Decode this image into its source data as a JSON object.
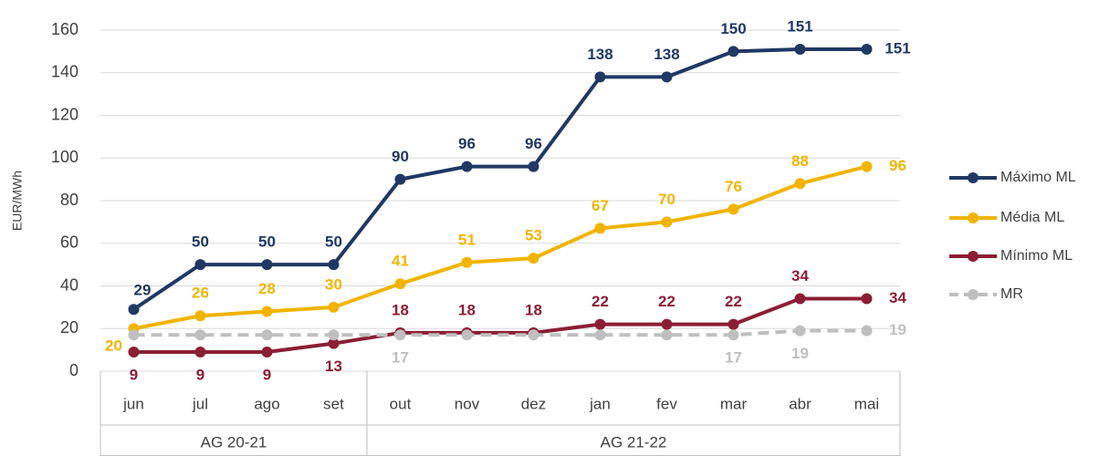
{
  "chart_data": {
    "type": "line",
    "y_label": "EUR/MWh",
    "categories": [
      "jun",
      "jul",
      "ago",
      "set",
      "out",
      "nov",
      "dez",
      "jan",
      "fev",
      "mar",
      "abr",
      "mai"
    ],
    "category_groups": [
      {
        "name": "AG 20-21",
        "categories": [
          "jun",
          "jul",
          "ago",
          "set"
        ]
      },
      {
        "name": "AG 21-22",
        "categories": [
          "out",
          "nov",
          "dez",
          "jan",
          "fev",
          "mar",
          "abr",
          "mai"
        ]
      }
    ],
    "series": [
      {
        "name": "Máximo ML",
        "color": "#203864",
        "line_style": "solid",
        "values": [
          29,
          50,
          50,
          50,
          90,
          96,
          96,
          138,
          138,
          150,
          151,
          151
        ]
      },
      {
        "name": "Média ML",
        "color": "#f0b400",
        "line_style": "solid",
        "values": [
          20,
          26,
          28,
          30,
          41,
          51,
          53,
          67,
          70,
          76,
          88,
          96
        ]
      },
      {
        "name": "Mínimo ML",
        "color": "#8b1e35",
        "line_style": "solid",
        "values": [
          9,
          9,
          9,
          13,
          18,
          18,
          18,
          22,
          22,
          22,
          34,
          34
        ]
      },
      {
        "name": "MR",
        "color": "#bfbfbf",
        "line_style": "dashed",
        "values": [
          17,
          17,
          17,
          17,
          17,
          17,
          17,
          17,
          17,
          17,
          19,
          19
        ],
        "value_labels": [
          null,
          null,
          null,
          null,
          "17",
          null,
          null,
          null,
          null,
          "17",
          "19",
          "19"
        ]
      }
    ],
    "ylim": [
      0,
      160
    ],
    "yticks": [
      0,
      20,
      40,
      60,
      80,
      100,
      120,
      140,
      160
    ],
    "grid": true,
    "legend_position": "right"
  }
}
